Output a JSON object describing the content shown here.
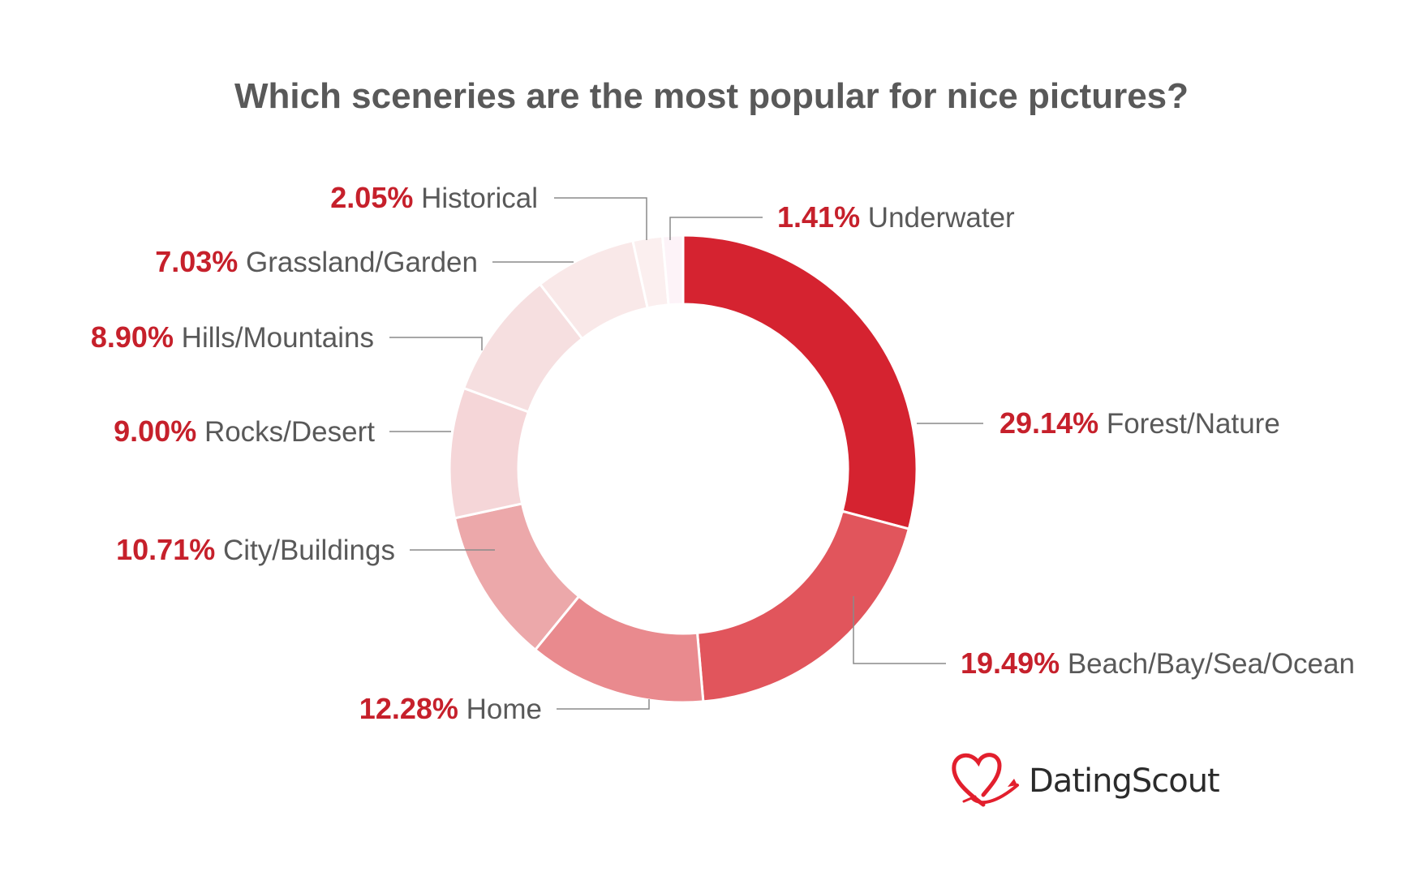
{
  "title": "Which sceneries are the most popular for nice pictures?",
  "chart_data": {
    "type": "pie",
    "style": "donut",
    "title": "Which sceneries are the most popular for nice pictures?",
    "slices": [
      {
        "label": "Forest/Nature",
        "value": 29.14,
        "display": "29.14%",
        "color": "#d52330"
      },
      {
        "label": "Beach/Bay/Sea/Ocean",
        "value": 19.49,
        "display": "19.49%",
        "color": "#e1555c"
      },
      {
        "label": "Home",
        "value": 12.28,
        "display": "12.28%",
        "color": "#e98a8e"
      },
      {
        "label": "City/Buildings",
        "value": 10.71,
        "display": "10.71%",
        "color": "#eca8aa"
      },
      {
        "label": "Rocks/Desert",
        "value": 9.0,
        "display": "9.00%",
        "color": "#f5d6d8"
      },
      {
        "label": "Hills/Mountains",
        "value": 8.9,
        "display": "8.90%",
        "color": "#f6dfe0"
      },
      {
        "label": "Grassland/Garden",
        "value": 7.03,
        "display": "7.03%",
        "color": "#f9e8e8"
      },
      {
        "label": "Historical",
        "value": 2.05,
        "display": "2.05%",
        "color": "#fbefef"
      },
      {
        "label": "Underwater",
        "value": 1.41,
        "display": "1.41%",
        "color": "#fdf3f8"
      }
    ],
    "label_color": "#c6202b",
    "start_angle": "top (12 o'clock)",
    "direction": "clockwise"
  },
  "brand": {
    "name": "DatingScout",
    "logo_icon": "heart-arrow-icon",
    "logo_color": "#e21f2d"
  }
}
